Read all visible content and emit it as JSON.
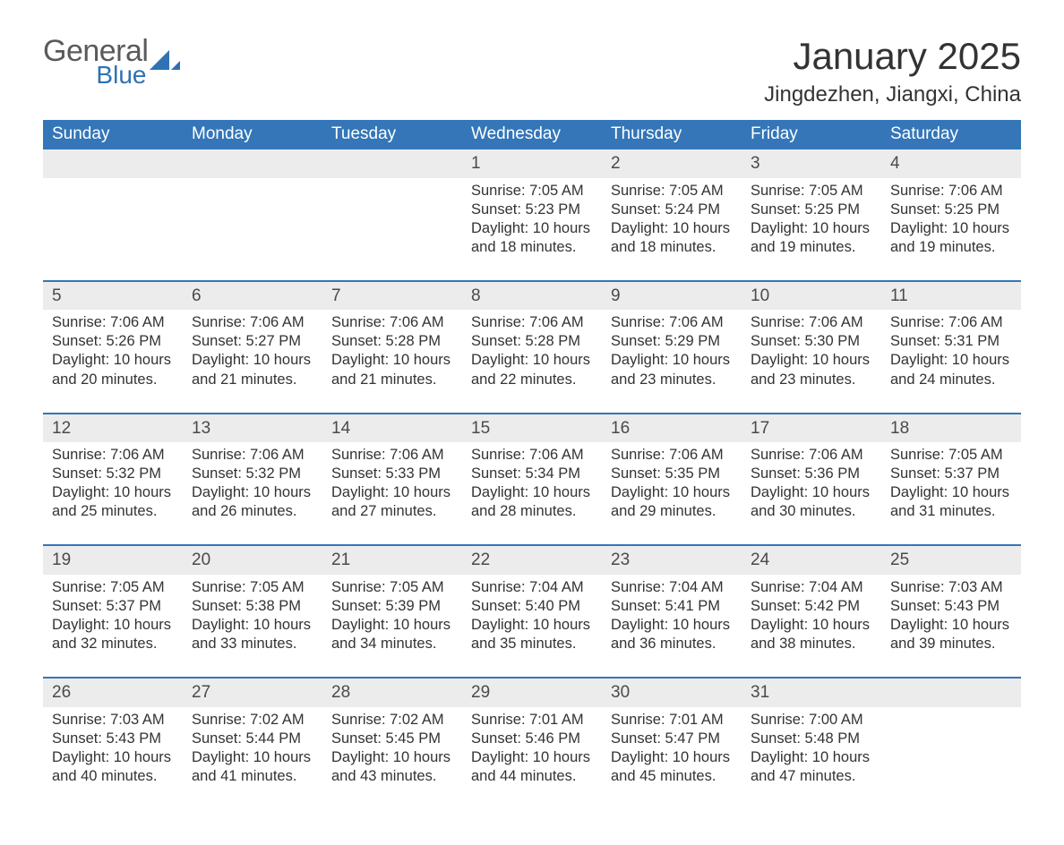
{
  "brand": {
    "name_part1": "General",
    "name_part2": "Blue",
    "text_color_general": "#5a5a5a",
    "text_color_blue": "#2f72b4",
    "shape_color": "#2f72b4"
  },
  "title": "January 2025",
  "subtitle": "Jingdezhen, Jiangxi, China",
  "colors": {
    "header_bg": "#3476b8",
    "header_text": "#ffffff",
    "daynum_bg": "#ececec",
    "daynum_text": "#4a4a4a",
    "body_text": "#333333",
    "week_separator": "#3476b8",
    "page_bg": "#ffffff"
  },
  "typography": {
    "title_fontsize_pt": 32,
    "subtitle_fontsize_pt": 18,
    "header_fontsize_pt": 14,
    "daynum_fontsize_pt": 14,
    "cell_fontsize_pt": 12
  },
  "day_headers": [
    "Sunday",
    "Monday",
    "Tuesday",
    "Wednesday",
    "Thursday",
    "Friday",
    "Saturday"
  ],
  "weeks": [
    [
      null,
      null,
      null,
      {
        "d": "1",
        "sr": "Sunrise: 7:05 AM",
        "ss": "Sunset: 5:23 PM",
        "dl1": "Daylight: 10 hours",
        "dl2": "and 18 minutes."
      },
      {
        "d": "2",
        "sr": "Sunrise: 7:05 AM",
        "ss": "Sunset: 5:24 PM",
        "dl1": "Daylight: 10 hours",
        "dl2": "and 18 minutes."
      },
      {
        "d": "3",
        "sr": "Sunrise: 7:05 AM",
        "ss": "Sunset: 5:25 PM",
        "dl1": "Daylight: 10 hours",
        "dl2": "and 19 minutes."
      },
      {
        "d": "4",
        "sr": "Sunrise: 7:06 AM",
        "ss": "Sunset: 5:25 PM",
        "dl1": "Daylight: 10 hours",
        "dl2": "and 19 minutes."
      }
    ],
    [
      {
        "d": "5",
        "sr": "Sunrise: 7:06 AM",
        "ss": "Sunset: 5:26 PM",
        "dl1": "Daylight: 10 hours",
        "dl2": "and 20 minutes."
      },
      {
        "d": "6",
        "sr": "Sunrise: 7:06 AM",
        "ss": "Sunset: 5:27 PM",
        "dl1": "Daylight: 10 hours",
        "dl2": "and 21 minutes."
      },
      {
        "d": "7",
        "sr": "Sunrise: 7:06 AM",
        "ss": "Sunset: 5:28 PM",
        "dl1": "Daylight: 10 hours",
        "dl2": "and 21 minutes."
      },
      {
        "d": "8",
        "sr": "Sunrise: 7:06 AM",
        "ss": "Sunset: 5:28 PM",
        "dl1": "Daylight: 10 hours",
        "dl2": "and 22 minutes."
      },
      {
        "d": "9",
        "sr": "Sunrise: 7:06 AM",
        "ss": "Sunset: 5:29 PM",
        "dl1": "Daylight: 10 hours",
        "dl2": "and 23 minutes."
      },
      {
        "d": "10",
        "sr": "Sunrise: 7:06 AM",
        "ss": "Sunset: 5:30 PM",
        "dl1": "Daylight: 10 hours",
        "dl2": "and 23 minutes."
      },
      {
        "d": "11",
        "sr": "Sunrise: 7:06 AM",
        "ss": "Sunset: 5:31 PM",
        "dl1": "Daylight: 10 hours",
        "dl2": "and 24 minutes."
      }
    ],
    [
      {
        "d": "12",
        "sr": "Sunrise: 7:06 AM",
        "ss": "Sunset: 5:32 PM",
        "dl1": "Daylight: 10 hours",
        "dl2": "and 25 minutes."
      },
      {
        "d": "13",
        "sr": "Sunrise: 7:06 AM",
        "ss": "Sunset: 5:32 PM",
        "dl1": "Daylight: 10 hours",
        "dl2": "and 26 minutes."
      },
      {
        "d": "14",
        "sr": "Sunrise: 7:06 AM",
        "ss": "Sunset: 5:33 PM",
        "dl1": "Daylight: 10 hours",
        "dl2": "and 27 minutes."
      },
      {
        "d": "15",
        "sr": "Sunrise: 7:06 AM",
        "ss": "Sunset: 5:34 PM",
        "dl1": "Daylight: 10 hours",
        "dl2": "and 28 minutes."
      },
      {
        "d": "16",
        "sr": "Sunrise: 7:06 AM",
        "ss": "Sunset: 5:35 PM",
        "dl1": "Daylight: 10 hours",
        "dl2": "and 29 minutes."
      },
      {
        "d": "17",
        "sr": "Sunrise: 7:06 AM",
        "ss": "Sunset: 5:36 PM",
        "dl1": "Daylight: 10 hours",
        "dl2": "and 30 minutes."
      },
      {
        "d": "18",
        "sr": "Sunrise: 7:05 AM",
        "ss": "Sunset: 5:37 PM",
        "dl1": "Daylight: 10 hours",
        "dl2": "and 31 minutes."
      }
    ],
    [
      {
        "d": "19",
        "sr": "Sunrise: 7:05 AM",
        "ss": "Sunset: 5:37 PM",
        "dl1": "Daylight: 10 hours",
        "dl2": "and 32 minutes."
      },
      {
        "d": "20",
        "sr": "Sunrise: 7:05 AM",
        "ss": "Sunset: 5:38 PM",
        "dl1": "Daylight: 10 hours",
        "dl2": "and 33 minutes."
      },
      {
        "d": "21",
        "sr": "Sunrise: 7:05 AM",
        "ss": "Sunset: 5:39 PM",
        "dl1": "Daylight: 10 hours",
        "dl2": "and 34 minutes."
      },
      {
        "d": "22",
        "sr": "Sunrise: 7:04 AM",
        "ss": "Sunset: 5:40 PM",
        "dl1": "Daylight: 10 hours",
        "dl2": "and 35 minutes."
      },
      {
        "d": "23",
        "sr": "Sunrise: 7:04 AM",
        "ss": "Sunset: 5:41 PM",
        "dl1": "Daylight: 10 hours",
        "dl2": "and 36 minutes."
      },
      {
        "d": "24",
        "sr": "Sunrise: 7:04 AM",
        "ss": "Sunset: 5:42 PM",
        "dl1": "Daylight: 10 hours",
        "dl2": "and 38 minutes."
      },
      {
        "d": "25",
        "sr": "Sunrise: 7:03 AM",
        "ss": "Sunset: 5:43 PM",
        "dl1": "Daylight: 10 hours",
        "dl2": "and 39 minutes."
      }
    ],
    [
      {
        "d": "26",
        "sr": "Sunrise: 7:03 AM",
        "ss": "Sunset: 5:43 PM",
        "dl1": "Daylight: 10 hours",
        "dl2": "and 40 minutes."
      },
      {
        "d": "27",
        "sr": "Sunrise: 7:02 AM",
        "ss": "Sunset: 5:44 PM",
        "dl1": "Daylight: 10 hours",
        "dl2": "and 41 minutes."
      },
      {
        "d": "28",
        "sr": "Sunrise: 7:02 AM",
        "ss": "Sunset: 5:45 PM",
        "dl1": "Daylight: 10 hours",
        "dl2": "and 43 minutes."
      },
      {
        "d": "29",
        "sr": "Sunrise: 7:01 AM",
        "ss": "Sunset: 5:46 PM",
        "dl1": "Daylight: 10 hours",
        "dl2": "and 44 minutes."
      },
      {
        "d": "30",
        "sr": "Sunrise: 7:01 AM",
        "ss": "Sunset: 5:47 PM",
        "dl1": "Daylight: 10 hours",
        "dl2": "and 45 minutes."
      },
      {
        "d": "31",
        "sr": "Sunrise: 7:00 AM",
        "ss": "Sunset: 5:48 PM",
        "dl1": "Daylight: 10 hours",
        "dl2": "and 47 minutes."
      },
      null
    ]
  ]
}
